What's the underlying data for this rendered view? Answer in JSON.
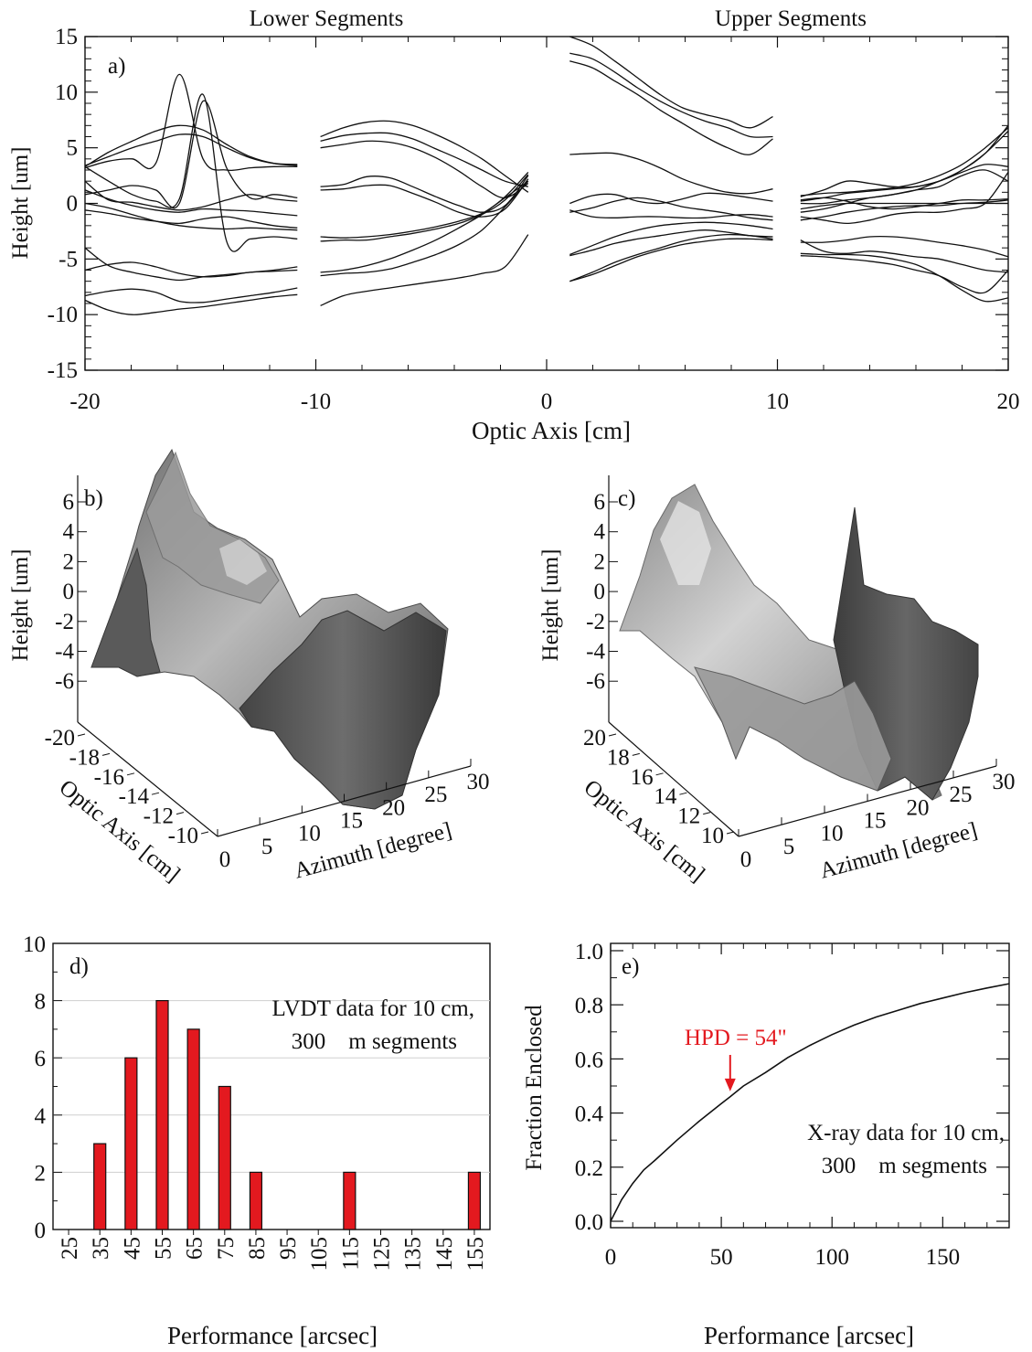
{
  "panel_a": {
    "top_left_title": "Lower Segments",
    "top_right_title": "Upper Segments",
    "label": "a)",
    "xlabel": "Optic Axis [cm]",
    "ylabel": "Height [um]"
  },
  "panel_b": {
    "label": "b)",
    "zlabel": "Height [um]",
    "x_axis_label": "Optic Axis [cm]",
    "y_axis_label": "Azimuth [degree]"
  },
  "panel_c": {
    "label": "c)",
    "zlabel": "Height [um]",
    "x_axis_label": "Optic Axis [cm]",
    "y_axis_label": "Azimuth [degree]"
  },
  "panel_d": {
    "label": "d)",
    "annotation_line1": "LVDT data for 10 cm,",
    "annotation_line2": "300    m segments",
    "xlabel": "Performance [arcsec]"
  },
  "panel_e": {
    "label": "e)",
    "annotation_line1": "X-ray data for 10 cm,",
    "annotation_line2": "300    m segments",
    "hpd_label": "HPD = 54\"",
    "xlabel": "Performance [arcsec]",
    "ylabel": "Fraction Enclosed"
  },
  "colors": {
    "bar": "#e3191f",
    "hpd": "#e3191f",
    "line": "#111111"
  },
  "chart_data": [
    {
      "id": "a",
      "type": "line",
      "xlim": [
        -20,
        20
      ],
      "ylim": [
        -15,
        15
      ],
      "x_ticks": [
        -20,
        -10,
        0,
        10,
        20
      ],
      "y_ticks": [
        -15,
        -10,
        -5,
        0,
        5,
        10,
        15
      ],
      "segments": [
        {
          "range": [
            -20,
            -10.8
          ],
          "series": [
            [
              3.3,
              4.6,
              5.6,
              6.5,
              7.0,
              6.6,
              5.3,
              4.2,
              3.6,
              3.4
            ],
            [
              3.4,
              4.2,
              5.0,
              5.6,
              6.2,
              6.0,
              5.0,
              4.1,
              3.6,
              3.5
            ],
            [
              3.2,
              3.8,
              4.0,
              3.6,
              11.6,
              4.0,
              3.0,
              3.2,
              3.3,
              3.3
            ],
            [
              3.3,
              2.0,
              0.8,
              0.2,
              0.4,
              9.8,
              -3.4,
              -3.2,
              -3.0,
              -3.2
            ],
            [
              0.8,
              1.2,
              1.6,
              1.2,
              0.0,
              9.2,
              3.2,
              0.5,
              0.8,
              0.5
            ],
            [
              2.0,
              0.3,
              0.1,
              -0.3,
              -0.6,
              -0.3,
              0.3,
              0.8,
              0.4,
              0.2
            ],
            [
              -0.6,
              -0.9,
              -1.3,
              -1.6,
              -1.8,
              -1.4,
              -1.2,
              -1.6,
              -2.0,
              -2.2
            ],
            [
              1.2,
              0.4,
              -0.2,
              -0.6,
              -0.8,
              -0.5,
              -0.6,
              -0.7,
              -0.9,
              -1.1
            ],
            [
              0.0,
              -0.4,
              -1.0,
              -1.6,
              -2.0,
              -2.2,
              -2.3,
              -2.2,
              -2.3,
              -2.4
            ],
            [
              -4.0,
              -5.6,
              -6.2,
              -6.6,
              -6.9,
              -6.6,
              -6.4,
              -6.2,
              -6.0,
              -5.7
            ],
            [
              -6.0,
              -5.5,
              -5.3,
              -5.7,
              -6.3,
              -6.6,
              -6.5,
              -6.2,
              -6.1,
              -6.0
            ],
            [
              -8.3,
              -7.9,
              -7.7,
              -8.0,
              -8.8,
              -8.9,
              -8.6,
              -8.3,
              -8.0,
              -7.6
            ],
            [
              -8.7,
              -9.6,
              -10.0,
              -9.8,
              -9.5,
              -9.3,
              -9.0,
              -8.7,
              -8.4,
              -8.2
            ]
          ]
        },
        {
          "range": [
            -9.8,
            -0.8
          ],
          "series": [
            [
              6.0,
              6.8,
              7.3,
              7.4,
              7.0,
              6.2,
              5.2,
              4.0,
              2.5,
              1.0
            ],
            [
              5.6,
              6.1,
              6.3,
              6.3,
              5.8,
              4.9,
              4.0,
              3.0,
              2.0,
              1.5
            ],
            [
              5.0,
              5.3,
              5.6,
              5.5,
              5.0,
              4.1,
              2.9,
              1.5,
              0.5,
              1.8
            ],
            [
              1.5,
              1.7,
              2.4,
              2.3,
              1.5,
              0.6,
              -0.2,
              -0.8,
              -0.2,
              2.5
            ],
            [
              1.2,
              1.3,
              1.6,
              1.6,
              0.9,
              0.1,
              -0.8,
              -1.2,
              -0.5,
              2.2
            ],
            [
              -3.0,
              -3.1,
              -3.0,
              -2.8,
              -2.5,
              -2.1,
              -1.6,
              -0.9,
              0.5,
              2.0
            ],
            [
              -3.4,
              -3.3,
              -3.3,
              -3.0,
              -2.7,
              -2.3,
              -1.8,
              -1.0,
              0.3,
              2.6
            ],
            [
              -6.2,
              -6.0,
              -5.6,
              -5.0,
              -4.2,
              -3.3,
              -2.2,
              -1.0,
              0.6,
              2.8
            ],
            [
              -6.5,
              -6.3,
              -6.2,
              -5.9,
              -5.3,
              -4.6,
              -3.7,
              -2.4,
              -0.3,
              2.0
            ],
            [
              -9.2,
              -8.3,
              -7.9,
              -7.6,
              -7.3,
              -7.0,
              -6.7,
              -6.3,
              -5.7,
              -2.8
            ]
          ]
        },
        {
          "range": [
            1,
            9.8
          ],
          "series": [
            [
              15.0,
              14.2,
              12.8,
              11.3,
              9.8,
              8.6,
              8.0,
              7.5,
              6.8,
              7.8
            ],
            [
              13.5,
              13.0,
              11.8,
              10.4,
              9.2,
              8.2,
              7.4,
              6.8,
              6.0,
              6.0
            ],
            [
              12.8,
              12.2,
              11.0,
              9.8,
              8.4,
              7.2,
              6.0,
              5.0,
              4.4,
              5.8
            ],
            [
              4.4,
              4.5,
              4.5,
              4.0,
              3.2,
              2.2,
              1.5,
              1.0,
              0.9,
              1.3
            ],
            [
              0.0,
              0.7,
              0.8,
              0.2,
              0.0,
              0.4,
              0.9,
              0.8,
              0.5,
              0.2
            ],
            [
              -0.8,
              -0.4,
              0.2,
              0.5,
              0.2,
              -0.3,
              -0.6,
              -0.9,
              -1.3,
              -1.5
            ],
            [
              -0.6,
              -1.2,
              -1.3,
              -1.2,
              -1.2,
              -1.3,
              -1.3,
              -1.1,
              -1.0,
              -1.2
            ],
            [
              -4.6,
              -3.8,
              -3.0,
              -2.4,
              -2.0,
              -1.8,
              -1.7,
              -1.8,
              -2.0,
              -2.3
            ],
            [
              -4.7,
              -4.2,
              -3.6,
              -3.2,
              -2.9,
              -2.6,
              -2.4,
              -2.6,
              -2.9,
              -3.0
            ],
            [
              -7.0,
              -6.2,
              -5.3,
              -4.6,
              -4.0,
              -3.4,
              -3.0,
              -2.8,
              -2.9,
              -3.2
            ],
            [
              -7.0,
              -6.4,
              -5.6,
              -4.8,
              -4.2,
              -3.7,
              -3.4,
              -3.2,
              -3.2,
              -3.3
            ]
          ]
        },
        {
          "range": [
            11,
            20
          ],
          "series": [
            [
              0.7,
              0.9,
              1.0,
              1.2,
              1.4,
              1.8,
              2.5,
              3.5,
              5.0,
              6.8
            ],
            [
              0.2,
              0.5,
              0.9,
              1.1,
              1.3,
              1.5,
              2.0,
              3.0,
              4.5,
              7.0
            ],
            [
              0.0,
              0.0,
              0.3,
              0.5,
              0.8,
              1.2,
              2.0,
              3.0,
              4.5,
              6.5
            ],
            [
              -0.8,
              -0.5,
              0.0,
              0.5,
              0.8,
              1.2,
              1.5,
              2.5,
              3.0,
              2.0
            ],
            [
              0.6,
              1.2,
              2.0,
              1.8,
              1.5,
              1.5,
              2.0,
              2.8,
              3.5,
              3.3
            ],
            [
              0.3,
              0.5,
              0.2,
              -0.3,
              -0.5,
              -0.3,
              0.0,
              0.3,
              0.3,
              0.4
            ],
            [
              -0.5,
              -0.2,
              0.0,
              0.0,
              0.0,
              0.0,
              0.0,
              0.0,
              0.0,
              0.0
            ],
            [
              -1.5,
              -1.2,
              -0.8,
              -0.5,
              -0.3,
              -0.2,
              -0.2,
              0.0,
              0.1,
              0.3
            ],
            [
              -1.2,
              -1.5,
              -1.8,
              -1.5,
              -1.0,
              -0.8,
              -0.8,
              -0.5,
              0.0,
              2.8
            ],
            [
              -3.5,
              -3.5,
              -3.3,
              -3.0,
              -3.0,
              -3.2,
              -3.5,
              -3.8,
              -4.2,
              -4.8
            ],
            [
              -3.3,
              -4.3,
              -4.5,
              -4.3,
              -4.5,
              -4.8,
              -5.0,
              -5.5,
              -6.0,
              -6.2
            ],
            [
              -4.7,
              -4.8,
              -5.0,
              -5.2,
              -5.5,
              -6.0,
              -6.5,
              -7.5,
              -8.0,
              -6.0
            ],
            [
              -4.5,
              -4.6,
              -4.6,
              -4.7,
              -5.0,
              -5.5,
              -6.5,
              -7.8,
              -8.8,
              -8.5
            ]
          ]
        }
      ]
    },
    {
      "id": "b",
      "type": "surface",
      "z_ticks": [
        6,
        4,
        2,
        0,
        -2,
        -4,
        -6
      ],
      "x_ticks": [
        -20,
        -18,
        -16,
        -14,
        -12,
        -10
      ],
      "y_ticks": [
        0,
        5,
        10,
        15,
        20,
        25,
        30
      ]
    },
    {
      "id": "c",
      "type": "surface",
      "z_ticks": [
        6,
        4,
        2,
        0,
        -2,
        -4,
        -6
      ],
      "x_ticks": [
        20,
        18,
        16,
        14,
        12,
        10
      ],
      "y_ticks": [
        0,
        5,
        10,
        15,
        20,
        25,
        30
      ]
    },
    {
      "id": "d",
      "type": "bar",
      "categories": [
        "25",
        "35",
        "45",
        "55",
        "65",
        "75",
        "85",
        "95",
        "105",
        "115",
        "125",
        "135",
        "145",
        "155"
      ],
      "values": [
        0,
        3,
        6,
        8,
        7,
        5,
        2,
        0,
        0,
        2,
        0,
        0,
        0,
        2
      ],
      "ylim": [
        0,
        10
      ],
      "y_ticks": [
        0,
        2,
        4,
        6,
        8,
        10
      ]
    },
    {
      "id": "e",
      "type": "line",
      "x": [
        0,
        5,
        10,
        15,
        20,
        30,
        40,
        50,
        54,
        60,
        70,
        80,
        90,
        100,
        110,
        120,
        130,
        140,
        150,
        160,
        170,
        180
      ],
      "y": [
        0.0,
        0.08,
        0.14,
        0.19,
        0.225,
        0.3,
        0.37,
        0.435,
        0.46,
        0.5,
        0.55,
        0.605,
        0.65,
        0.69,
        0.725,
        0.755,
        0.78,
        0.805,
        0.825,
        0.845,
        0.862,
        0.878
      ],
      "xlim": [
        0,
        180
      ],
      "ylim": [
        0,
        1.0
      ],
      "x_ticks": [
        0,
        50,
        100,
        150
      ],
      "y_ticks": [
        0.0,
        0.2,
        0.4,
        0.6,
        0.8,
        1.0
      ],
      "hpd_x": 54
    }
  ]
}
